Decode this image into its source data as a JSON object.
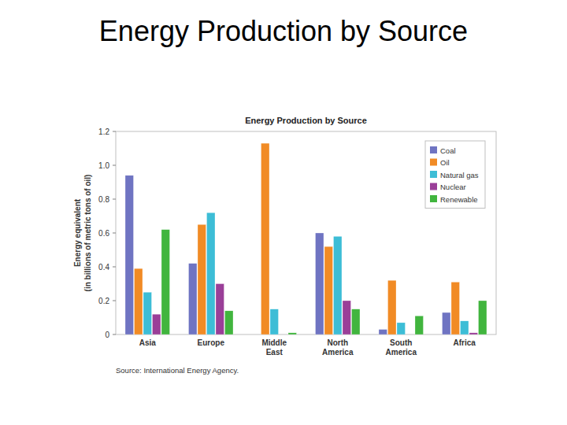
{
  "slide_title": "Energy Production by Source",
  "chart_data": {
    "type": "bar",
    "title": "Energy Production by Source",
    "y_label": "Energy equivalent (in billions of metric tons of oil)",
    "source": "Source: International Energy Agency.",
    "categories": [
      "Asia",
      "Europe",
      "Middle East",
      "North America",
      "South America",
      "Africa"
    ],
    "series": [
      {
        "name": "Coal",
        "color": "#6f74c2",
        "values": [
          0.94,
          0.42,
          0,
          0.6,
          0.03,
          0.13
        ]
      },
      {
        "name": "Oil",
        "color": "#f18b25",
        "values": [
          0.39,
          0.65,
          1.13,
          0.52,
          0.32,
          0.31
        ]
      },
      {
        "name": "Natural gas",
        "color": "#3dbdd6",
        "values": [
          0.25,
          0.72,
          0.15,
          0.58,
          0.07,
          0.08
        ]
      },
      {
        "name": "Nuclear",
        "color": "#9a3f98",
        "values": [
          0.12,
          0.3,
          0,
          0.2,
          0,
          0.01
        ]
      },
      {
        "name": "Renewable",
        "color": "#41b53e",
        "values": [
          0.62,
          0.14,
          0.01,
          0.15,
          0.11,
          0.2
        ]
      }
    ],
    "ylim": [
      0,
      1.2
    ],
    "yticks": [
      0,
      0.2,
      0.4,
      0.6,
      0.8,
      {
        "value": 1,
        "label": "1.0"
      },
      1.2
    ],
    "grid": false,
    "legend": "upper right"
  }
}
